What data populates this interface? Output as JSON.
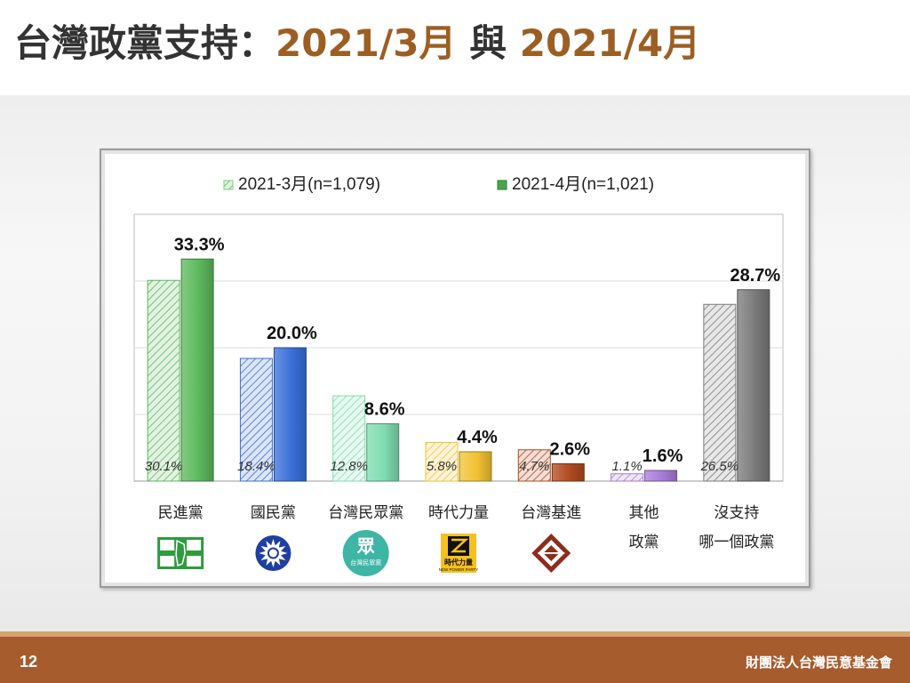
{
  "slide": {
    "title_main": "台灣政黨支持：",
    "title_date1": "2021/3月",
    "title_conj": "與",
    "title_date2": "2021/4月",
    "page_number": "12",
    "org_name": "財團法人台灣民意基金會"
  },
  "chart_data": {
    "type": "bar",
    "title": "",
    "xlabel": "",
    "ylabel": "",
    "ylim": [
      0,
      40
    ],
    "grid": true,
    "legend_placement": "top",
    "categories": [
      {
        "lines": [
          "民進黨"
        ],
        "logo_icon": "dpp-logo-icon"
      },
      {
        "lines": [
          "國民黨"
        ],
        "logo_icon": "kmt-logo-icon"
      },
      {
        "lines": [
          "台灣民眾黨"
        ],
        "logo_icon": "tpp-logo-icon",
        "logo_text": "台灣民眾黨"
      },
      {
        "lines": [
          "時代力量"
        ],
        "logo_icon": "npp-logo-icon",
        "logo_text": "時代力量",
        "logo_text_en": "NEW POWER PARTY"
      },
      {
        "lines": [
          "台灣基進"
        ],
        "logo_icon": "tsp-logo-icon"
      },
      {
        "lines": [
          "其他",
          "政黨"
        ],
        "logo_icon": null
      },
      {
        "lines": [
          "沒支持",
          "哪一個政黨"
        ],
        "logo_icon": null
      }
    ],
    "series": [
      {
        "name": "2021-3月(n=1,079)",
        "style": "hatched",
        "values": [
          30.1,
          18.4,
          12.8,
          5.8,
          4.7,
          1.1,
          26.5
        ],
        "labels": [
          "30.1%",
          "18.4%",
          "12.8%",
          "5.8%",
          "4.7%",
          "1.1%",
          "26.5%"
        ]
      },
      {
        "name": "2021-4月(n=1,021)",
        "style": "solid",
        "values": [
          33.3,
          20.0,
          8.6,
          4.4,
          2.6,
          1.6,
          28.7
        ],
        "labels": [
          "33.3%",
          "20.0%",
          "8.6%",
          "4.4%",
          "2.6%",
          "1.6%",
          "28.7%"
        ]
      }
    ],
    "category_colors": [
      "#5cb85c",
      "#3a6fd8",
      "#7fdcb0",
      "#f2c232",
      "#b04a1e",
      "#a77bd8",
      "#7a7a7a"
    ]
  }
}
